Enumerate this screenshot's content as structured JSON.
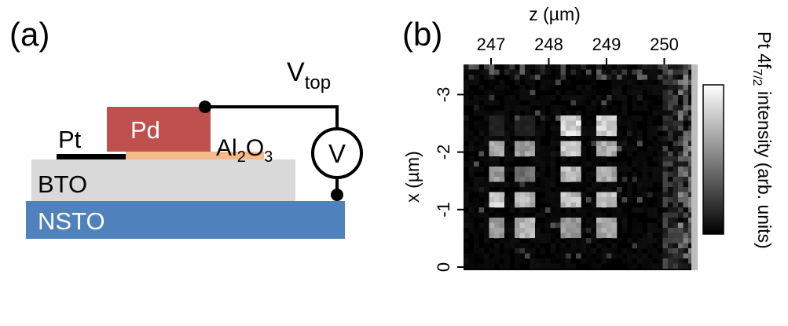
{
  "panel_a": {
    "label": "(a)",
    "layers": {
      "pt": "Pt",
      "pd": "Pd",
      "al2o3": {
        "base1": "Al",
        "sub1": "2",
        "base2": "O",
        "sub2": "3"
      },
      "bto": "BTO",
      "nsto": "NSTO"
    },
    "voltage": {
      "base": "V",
      "sub": "top"
    },
    "meter_symbol": "V",
    "colors": {
      "pd": "#c0504d",
      "al2o3": "#f8b98a",
      "bto": "#d9d9d9",
      "nsto": "#4f81bd",
      "pt": "#000000"
    }
  },
  "panel_b": {
    "label": "(b)",
    "top_axis_label": "z (µm)",
    "top_ticks": [
      "247",
      "248",
      "249",
      "250"
    ],
    "left_axis_label": "x (µm)",
    "left_ticks": [
      "-3",
      "-2",
      "-1",
      "0"
    ],
    "colorbar_label": {
      "base": "Pt 4f",
      "sub": "7/2",
      "rest": " intensity (arb. units)"
    },
    "chart_data": {
      "type": "heatmap",
      "x_ticks": [
        247,
        248,
        249,
        250
      ],
      "y_ticks": [
        -3,
        -2,
        -1,
        0
      ],
      "colormap": "grayscale",
      "pattern": {
        "columns_z": [
          246.95,
          247.45,
          248.25,
          248.85
        ],
        "rows_x": [
          -2.45,
          -2.05,
          -1.6,
          -1.15,
          -0.7
        ],
        "description_free_values": [
          [
            0.15,
            0.15,
            0.95,
            0.95
          ],
          [
            0.75,
            0.7,
            0.9,
            0.75
          ],
          [
            0.7,
            0.5,
            0.85,
            0.75
          ],
          [
            0.9,
            0.8,
            0.85,
            0.85
          ],
          [
            0.7,
            0.8,
            0.7,
            0.75
          ]
        ]
      }
    }
  }
}
